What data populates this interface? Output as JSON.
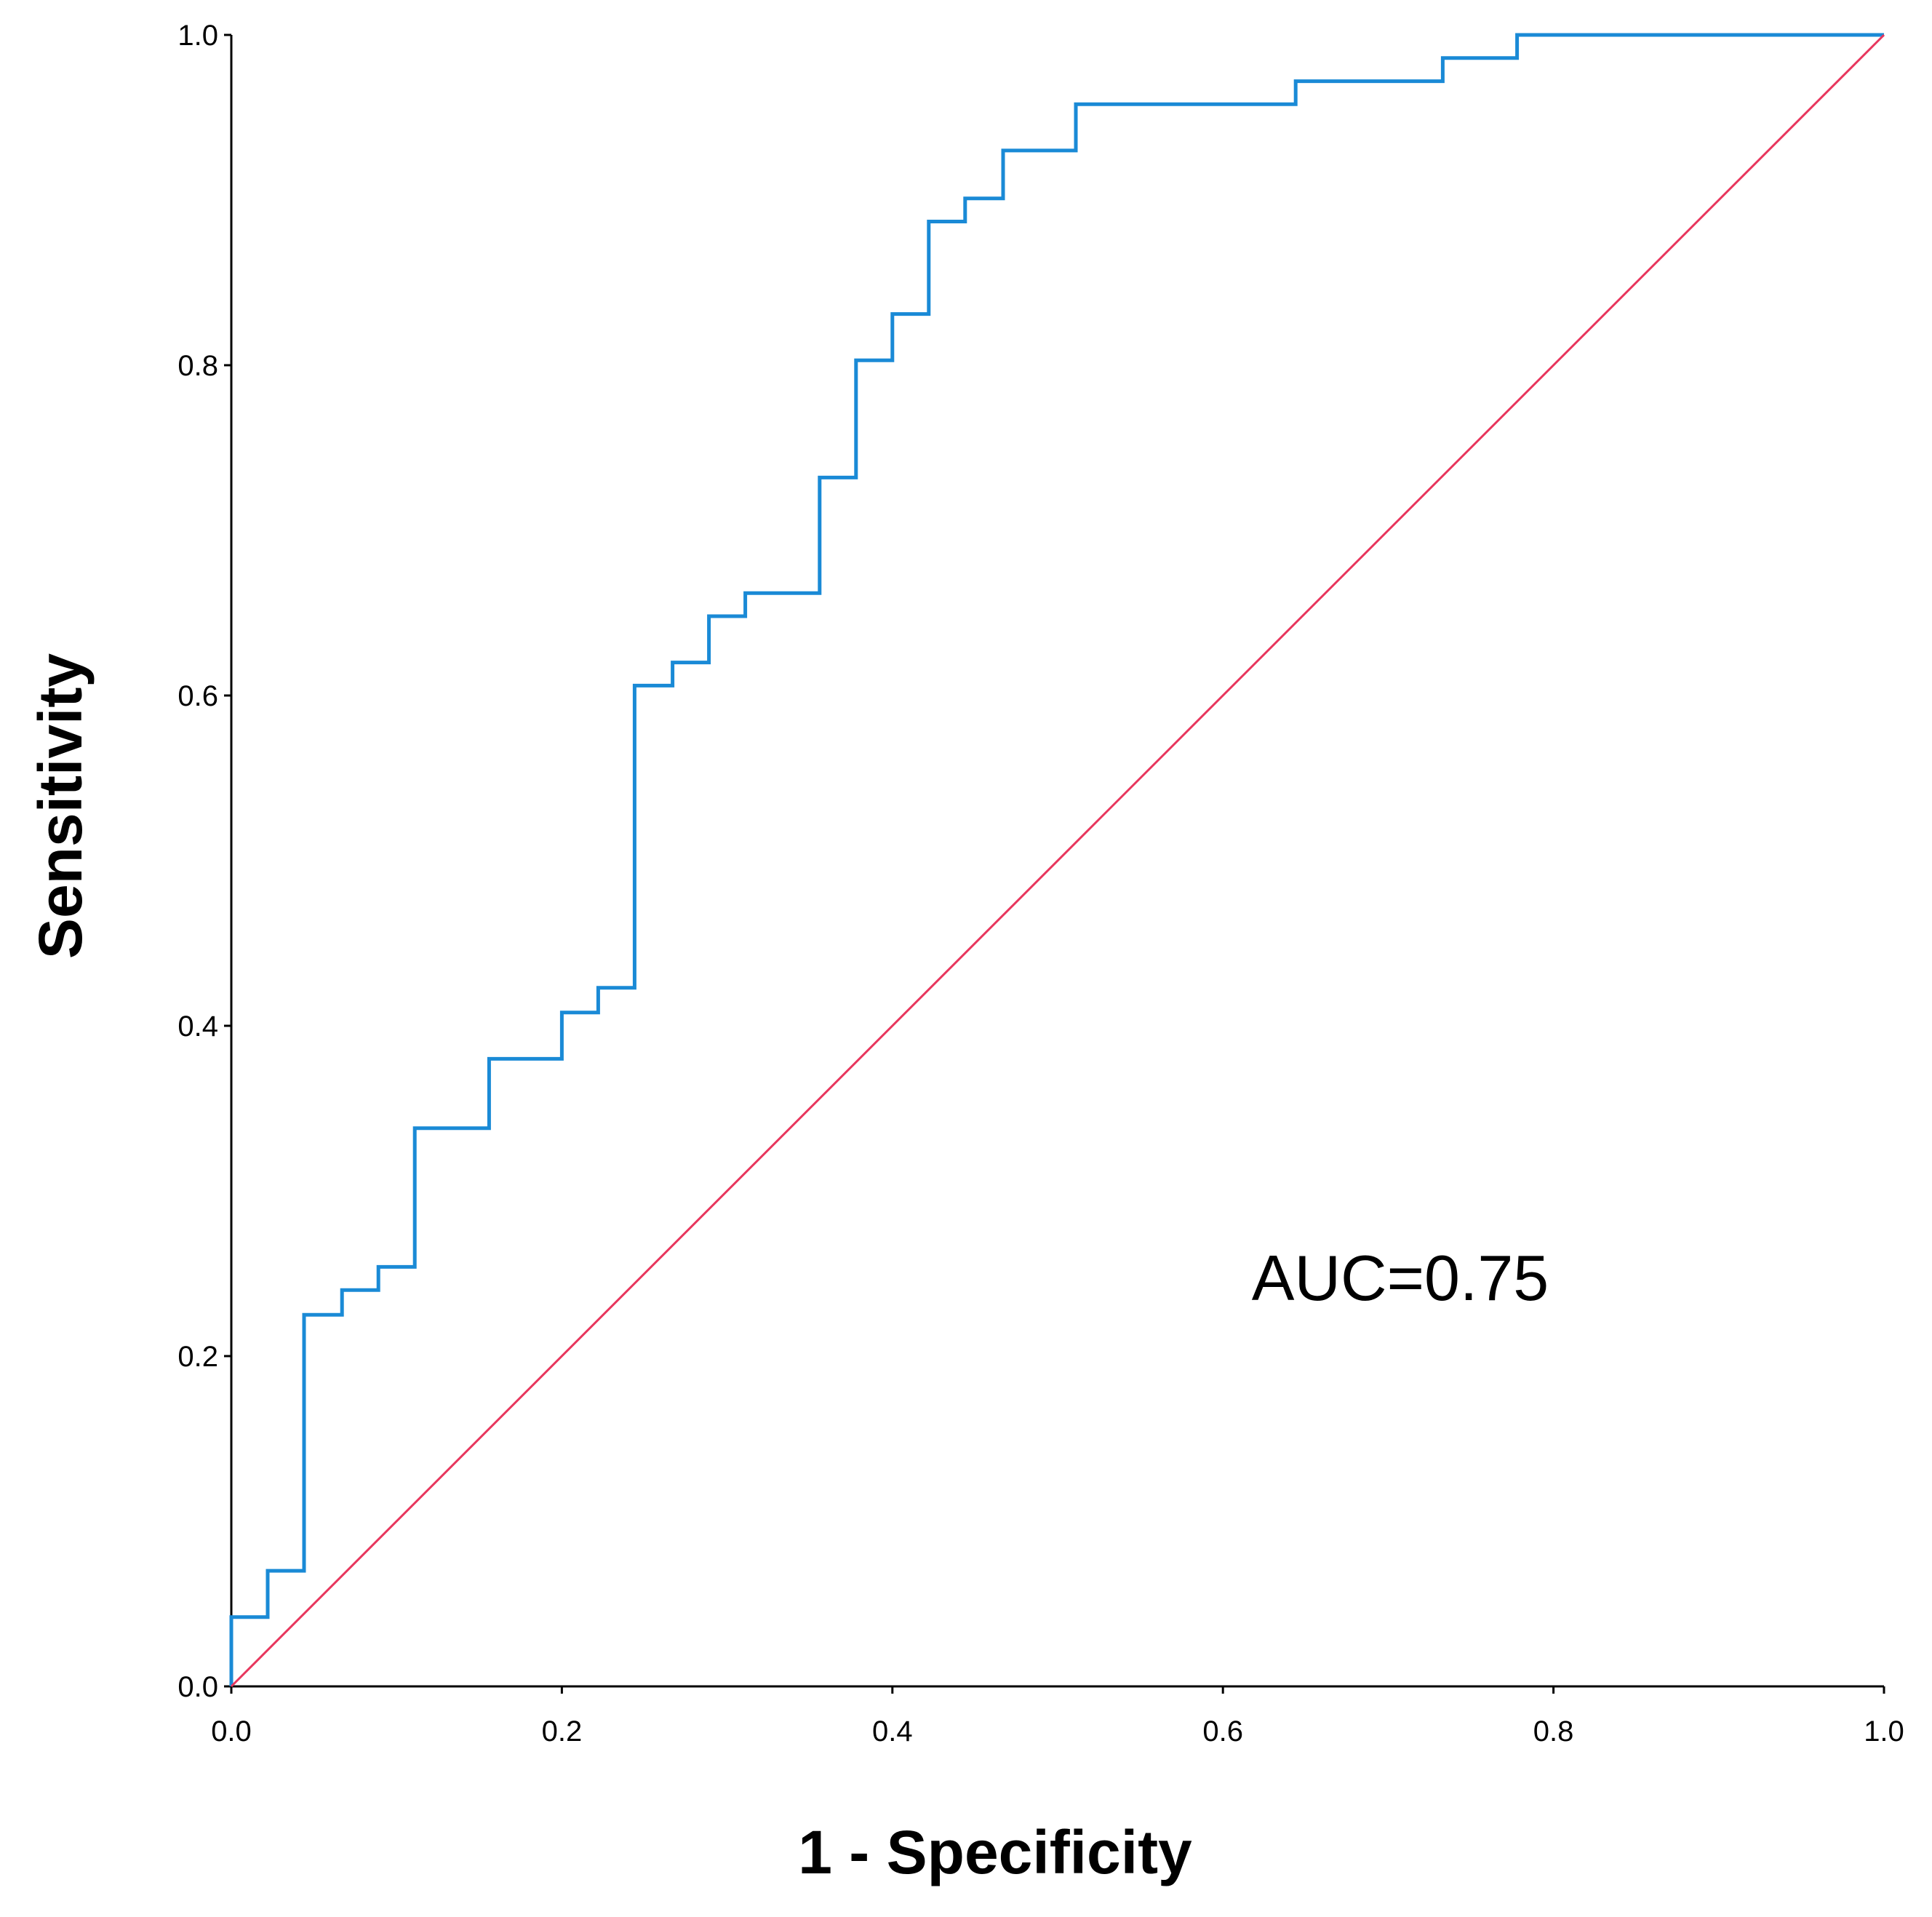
{
  "chart_data": {
    "type": "line",
    "xlabel": "1 - Specificity",
    "ylabel": "Sensitivity",
    "xlim": [
      0,
      1
    ],
    "ylim": [
      0,
      1
    ],
    "x_ticks": [
      "0.0",
      "0.2",
      "0.4",
      "0.6",
      "0.8",
      "1.0"
    ],
    "y_ticks": [
      "0.0",
      "0.2",
      "0.4",
      "0.6",
      "0.8",
      "1.0"
    ],
    "grid": false,
    "annotation": "AUC=0.75",
    "series": [
      {
        "color": "#1a8ad6",
        "step": true,
        "x": [
          0,
          0,
          0.022,
          0.022,
          0.044,
          0.044,
          0.067,
          0.067,
          0.089,
          0.089,
          0.111,
          0.111,
          0.156,
          0.156,
          0.2,
          0.2,
          0.222,
          0.222,
          0.244,
          0.244,
          0.267,
          0.267,
          0.289,
          0.289,
          0.311,
          0.311,
          0.356,
          0.356,
          0.378,
          0.378,
          0.4,
          0.4,
          0.422,
          0.422,
          0.444,
          0.444,
          0.467,
          0.467,
          0.511,
          0.511,
          0.644,
          0.644,
          0.733,
          0.733,
          0.778,
          0.778,
          1.0
        ],
        "y": [
          0,
          0.042,
          0.042,
          0.07,
          0.07,
          0.225,
          0.225,
          0.24,
          0.24,
          0.254,
          0.254,
          0.338,
          0.338,
          0.38,
          0.38,
          0.408,
          0.408,
          0.423,
          0.423,
          0.606,
          0.606,
          0.62,
          0.62,
          0.648,
          0.648,
          0.662,
          0.662,
          0.732,
          0.732,
          0.803,
          0.803,
          0.831,
          0.831,
          0.887,
          0.887,
          0.901,
          0.901,
          0.93,
          0.93,
          0.958,
          0.958,
          0.972,
          0.972,
          0.986,
          0.986,
          1.0,
          1.0
        ]
      },
      {
        "color": "#e8365d",
        "x": [
          0,
          1
        ],
        "y": [
          0,
          1
        ]
      }
    ]
  }
}
